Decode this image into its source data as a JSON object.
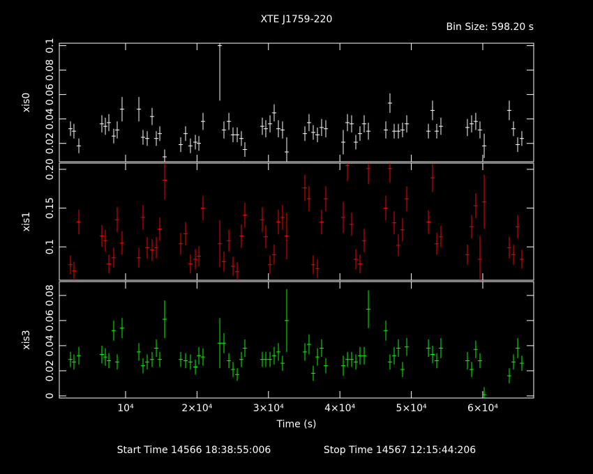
{
  "chart_data": {
    "type": "errorbar",
    "title": "XTE J1759-220",
    "subtitle": "Bin Size: 598.20 s",
    "x_label": "Time (s)",
    "footer": [
      "Start Time 14566 18:38:55:006",
      "Stop Time 14567 12:15:44:206"
    ],
    "xlim": [
      723,
      67130
    ],
    "xticks": [
      {
        "value": 10000,
        "label": "10⁴"
      },
      {
        "value": 20000,
        "label": "2×10⁴"
      },
      {
        "value": 30000,
        "label": "3×10⁴"
      },
      {
        "value": 40000,
        "label": "4×10⁴"
      },
      {
        "value": 50000,
        "label": "5×10⁴"
      },
      {
        "value": 60000,
        "label": "6×10⁴"
      }
    ],
    "x": [
      2290,
      2770,
      3460,
      6680,
      7170,
      7660,
      8340,
      8830,
      9510,
      11860,
      12440,
      13030,
      13710,
      14300,
      14790,
      15470,
      17720,
      18400,
      19080,
      19770,
      20260,
      20840,
      23190,
      23770,
      24460,
      25040,
      25630,
      26210,
      26700,
      29140,
      29630,
      30220,
      30800,
      31390,
      31970,
      32560,
      35100,
      35680,
      36270,
      36860,
      37440,
      38030,
      40470,
      41060,
      41640,
      42230,
      42810,
      43400,
      43990,
      46430,
      47010,
      47600,
      48190,
      48770,
      49360,
      52390,
      52970,
      53560,
      54140,
      57850,
      58440,
      59020,
      59610,
      60200,
      63710,
      64300,
      64890,
      65470
    ],
    "panels": [
      {
        "y_label": "xis0",
        "color": "#ffffff",
        "ylim": [
          0.005,
          0.102
        ],
        "yticks": [
          0.02,
          0.04,
          0.06,
          0.08,
          0.1
        ],
        "values": [
          0.032,
          0.03,
          0.018,
          0.036,
          0.034,
          0.037,
          0.026,
          0.031,
          0.048,
          0.048,
          0.025,
          0.024,
          0.042,
          0.024,
          0.028,
          0.009,
          0.019,
          0.028,
          0.018,
          0.021,
          0.02,
          0.038,
          0.1,
          0.031,
          0.038,
          0.027,
          0.027,
          0.024,
          0.015,
          0.034,
          0.032,
          0.036,
          0.045,
          0.032,
          0.031,
          0.013,
          0.028,
          0.037,
          0.029,
          0.027,
          0.033,
          0.032,
          0.021,
          0.037,
          0.036,
          0.021,
          0.028,
          0.036,
          0.03,
          0.031,
          0.053,
          0.03,
          0.03,
          0.031,
          0.036,
          0.03,
          0.047,
          0.03,
          0.034,
          0.033,
          0.036,
          0.038,
          0.031,
          0.018,
          0.047,
          0.032,
          0.019,
          0.024
        ],
        "errors": [
          0.006,
          0.006,
          0.006,
          0.007,
          0.007,
          0.007,
          0.006,
          0.007,
          0.01,
          0.01,
          0.006,
          0.006,
          0.007,
          0.006,
          0.006,
          0.006,
          0.006,
          0.006,
          0.006,
          0.006,
          0.006,
          0.007,
          0.045,
          0.007,
          0.007,
          0.006,
          0.006,
          0.006,
          0.006,
          0.007,
          0.007,
          0.007,
          0.007,
          0.007,
          0.007,
          0.012,
          0.006,
          0.007,
          0.006,
          0.006,
          0.007,
          0.007,
          0.01,
          0.007,
          0.007,
          0.006,
          0.006,
          0.007,
          0.007,
          0.007,
          0.008,
          0.006,
          0.006,
          0.006,
          0.007,
          0.006,
          0.008,
          0.006,
          0.007,
          0.007,
          0.007,
          0.007,
          0.007,
          0.01,
          0.008,
          0.006,
          0.006,
          0.006
        ]
      },
      {
        "y_label": "xis1",
        "color": "#ff0000",
        "ylim": [
          0.057,
          0.208
        ],
        "yticks": [
          0.1,
          0.15,
          {
            "value": 0.2,
            "label": "0.20"
          }
        ],
        "values": [
          0.077,
          0.069,
          0.132,
          0.114,
          0.108,
          0.078,
          0.086,
          0.135,
          0.105,
          0.086,
          0.138,
          0.099,
          0.096,
          0.099,
          0.123,
          0.186,
          0.104,
          0.117,
          0.078,
          0.084,
          0.088,
          0.15,
          0.104,
          0.081,
          0.108,
          0.075,
          0.068,
          0.114,
          0.141,
          0.135,
          0.113,
          0.077,
          0.09,
          0.132,
          0.138,
          0.114,
          0.176,
          0.162,
          0.077,
          0.072,
          0.132,
          0.162,
          0.138,
          0.205,
          0.129,
          0.084,
          0.078,
          0.108,
          0.201,
          0.15,
          0.201,
          0.131,
          0.102,
          0.122,
          0.162,
          0.132,
          0.189,
          0.104,
          0.113,
          0.09,
          0.126,
          0.153,
          0.084,
          0.158,
          0.099,
          0.09,
          0.126,
          0.084
        ],
        "errors": [
          0.012,
          0.012,
          0.016,
          0.014,
          0.014,
          0.012,
          0.013,
          0.016,
          0.015,
          0.013,
          0.016,
          0.014,
          0.014,
          0.014,
          0.015,
          0.025,
          0.014,
          0.015,
          0.012,
          0.013,
          0.013,
          0.016,
          0.03,
          0.013,
          0.014,
          0.012,
          0.012,
          0.015,
          0.016,
          0.016,
          0.015,
          0.012,
          0.013,
          0.016,
          0.016,
          0.03,
          0.017,
          0.016,
          0.012,
          0.012,
          0.016,
          0.016,
          0.02,
          0.02,
          0.015,
          0.013,
          0.012,
          0.015,
          0.02,
          0.016,
          0.018,
          0.015,
          0.014,
          0.015,
          0.016,
          0.015,
          0.018,
          0.014,
          0.014,
          0.013,
          0.015,
          0.016,
          0.03,
          0.035,
          0.014,
          0.013,
          0.015,
          0.012
        ]
      },
      {
        "y_label": "xis3",
        "color": "#00ff00",
        "ylim": [
          -0.0017,
          0.091
        ],
        "yticks": [
          0,
          0.02,
          0.04,
          0.06,
          0.08
        ],
        "values": [
          0.029,
          0.027,
          0.032,
          0.033,
          0.031,
          0.028,
          0.052,
          0.027,
          0.054,
          0.035,
          0.024,
          0.027,
          0.029,
          0.038,
          0.029,
          0.061,
          0.029,
          0.028,
          0.027,
          0.023,
          0.032,
          0.031,
          0.042,
          0.042,
          0.028,
          0.021,
          0.017,
          0.029,
          0.038,
          0.029,
          0.029,
          0.029,
          0.032,
          0.035,
          0.026,
          0.06,
          0.035,
          0.041,
          0.018,
          0.031,
          0.038,
          0.024,
          0.024,
          0.029,
          0.029,
          0.027,
          0.032,
          0.032,
          0.069,
          0.052,
          0.027,
          0.032,
          0.038,
          0.021,
          0.039,
          0.038,
          0.033,
          0.028,
          0.038,
          0.028,
          0.021,
          0.037,
          0.028,
          0.001,
          0.016,
          0.027,
          0.038,
          0.026
        ],
        "errors": [
          0.006,
          0.006,
          0.007,
          0.007,
          0.007,
          0.006,
          0.008,
          0.006,
          0.008,
          0.007,
          0.006,
          0.006,
          0.006,
          0.007,
          0.006,
          0.015,
          0.006,
          0.006,
          0.006,
          0.006,
          0.007,
          0.007,
          0.02,
          0.008,
          0.006,
          0.006,
          0.005,
          0.006,
          0.007,
          0.006,
          0.006,
          0.006,
          0.007,
          0.007,
          0.006,
          0.025,
          0.007,
          0.008,
          0.006,
          0.007,
          0.007,
          0.006,
          0.008,
          0.006,
          0.006,
          0.006,
          0.007,
          0.007,
          0.015,
          0.008,
          0.006,
          0.007,
          0.007,
          0.006,
          0.007,
          0.007,
          0.007,
          0.006,
          0.008,
          0.007,
          0.006,
          0.007,
          0.006,
          0.006,
          0.006,
          0.006,
          0.008,
          0.006
        ]
      }
    ]
  }
}
